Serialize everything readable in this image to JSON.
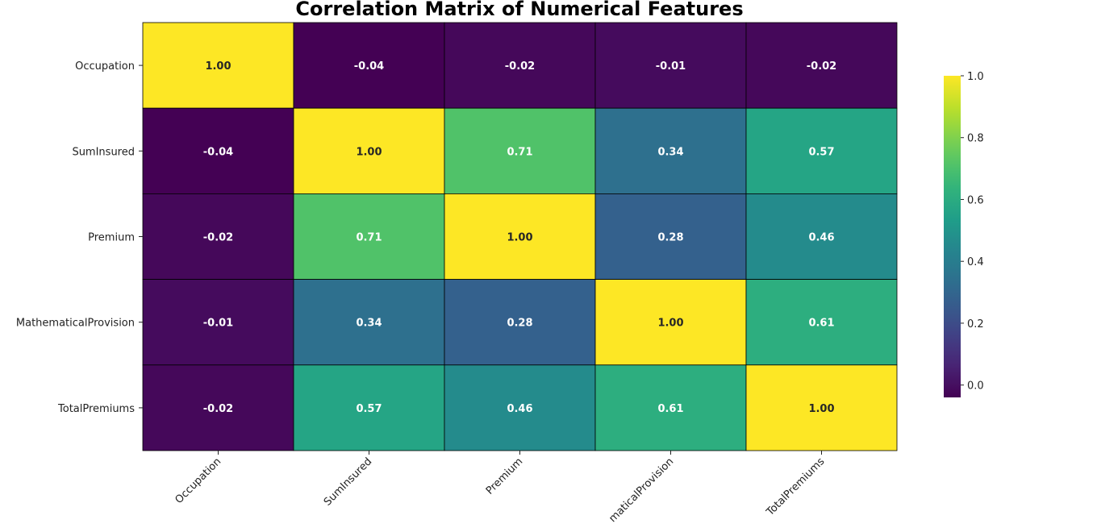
{
  "chart_data": {
    "type": "heatmap",
    "title": "Correlation Matrix of Numerical Features",
    "row_labels": [
      "Occupation",
      "SumInsured",
      "Premium",
      "MathematicalProvision",
      "TotalPremiums"
    ],
    "col_labels": [
      "Occupation",
      "SumInsured",
      "Premium",
      "MathematicalProvision",
      "TotalPremiums"
    ],
    "col_labels_visible": [
      "Occupation",
      "SumInsured",
      "Premium",
      "maticalProvision",
      "TotalPremiums"
    ],
    "values": [
      [
        1.0,
        -0.04,
        -0.02,
        -0.01,
        -0.02
      ],
      [
        -0.04,
        1.0,
        0.71,
        0.34,
        0.57
      ],
      [
        -0.02,
        0.71,
        1.0,
        0.28,
        0.46
      ],
      [
        -0.01,
        0.34,
        0.28,
        1.0,
        0.61
      ],
      [
        -0.02,
        0.57,
        0.46,
        0.61,
        1.0
      ]
    ],
    "value_labels": [
      [
        "1.00",
        "-0.04",
        "-0.02",
        "-0.01",
        "-0.02"
      ],
      [
        "-0.04",
        "1.00",
        "0.71",
        "0.34",
        "0.57"
      ],
      [
        "-0.02",
        "0.71",
        "1.00",
        "0.28",
        "0.46"
      ],
      [
        "-0.01",
        "0.34",
        "0.28",
        "1.00",
        "0.61"
      ],
      [
        "-0.02",
        "0.57",
        "0.46",
        "0.61",
        "1.00"
      ]
    ],
    "colormap": "viridis",
    "vmin": -0.04,
    "vmax": 1.0,
    "colorbar_ticks": [
      0.0,
      0.2,
      0.4,
      0.6,
      0.8,
      1.0
    ],
    "colorbar_tick_labels": [
      "0.0",
      "0.2",
      "0.4",
      "0.6",
      "0.8",
      "1.0"
    ],
    "x_tick_rotation": 45,
    "cell_borders": true,
    "cell_border_color": "#000000",
    "annotation_colors": {
      "light_bg": "#262626",
      "dark_bg": "#ffffff"
    }
  }
}
